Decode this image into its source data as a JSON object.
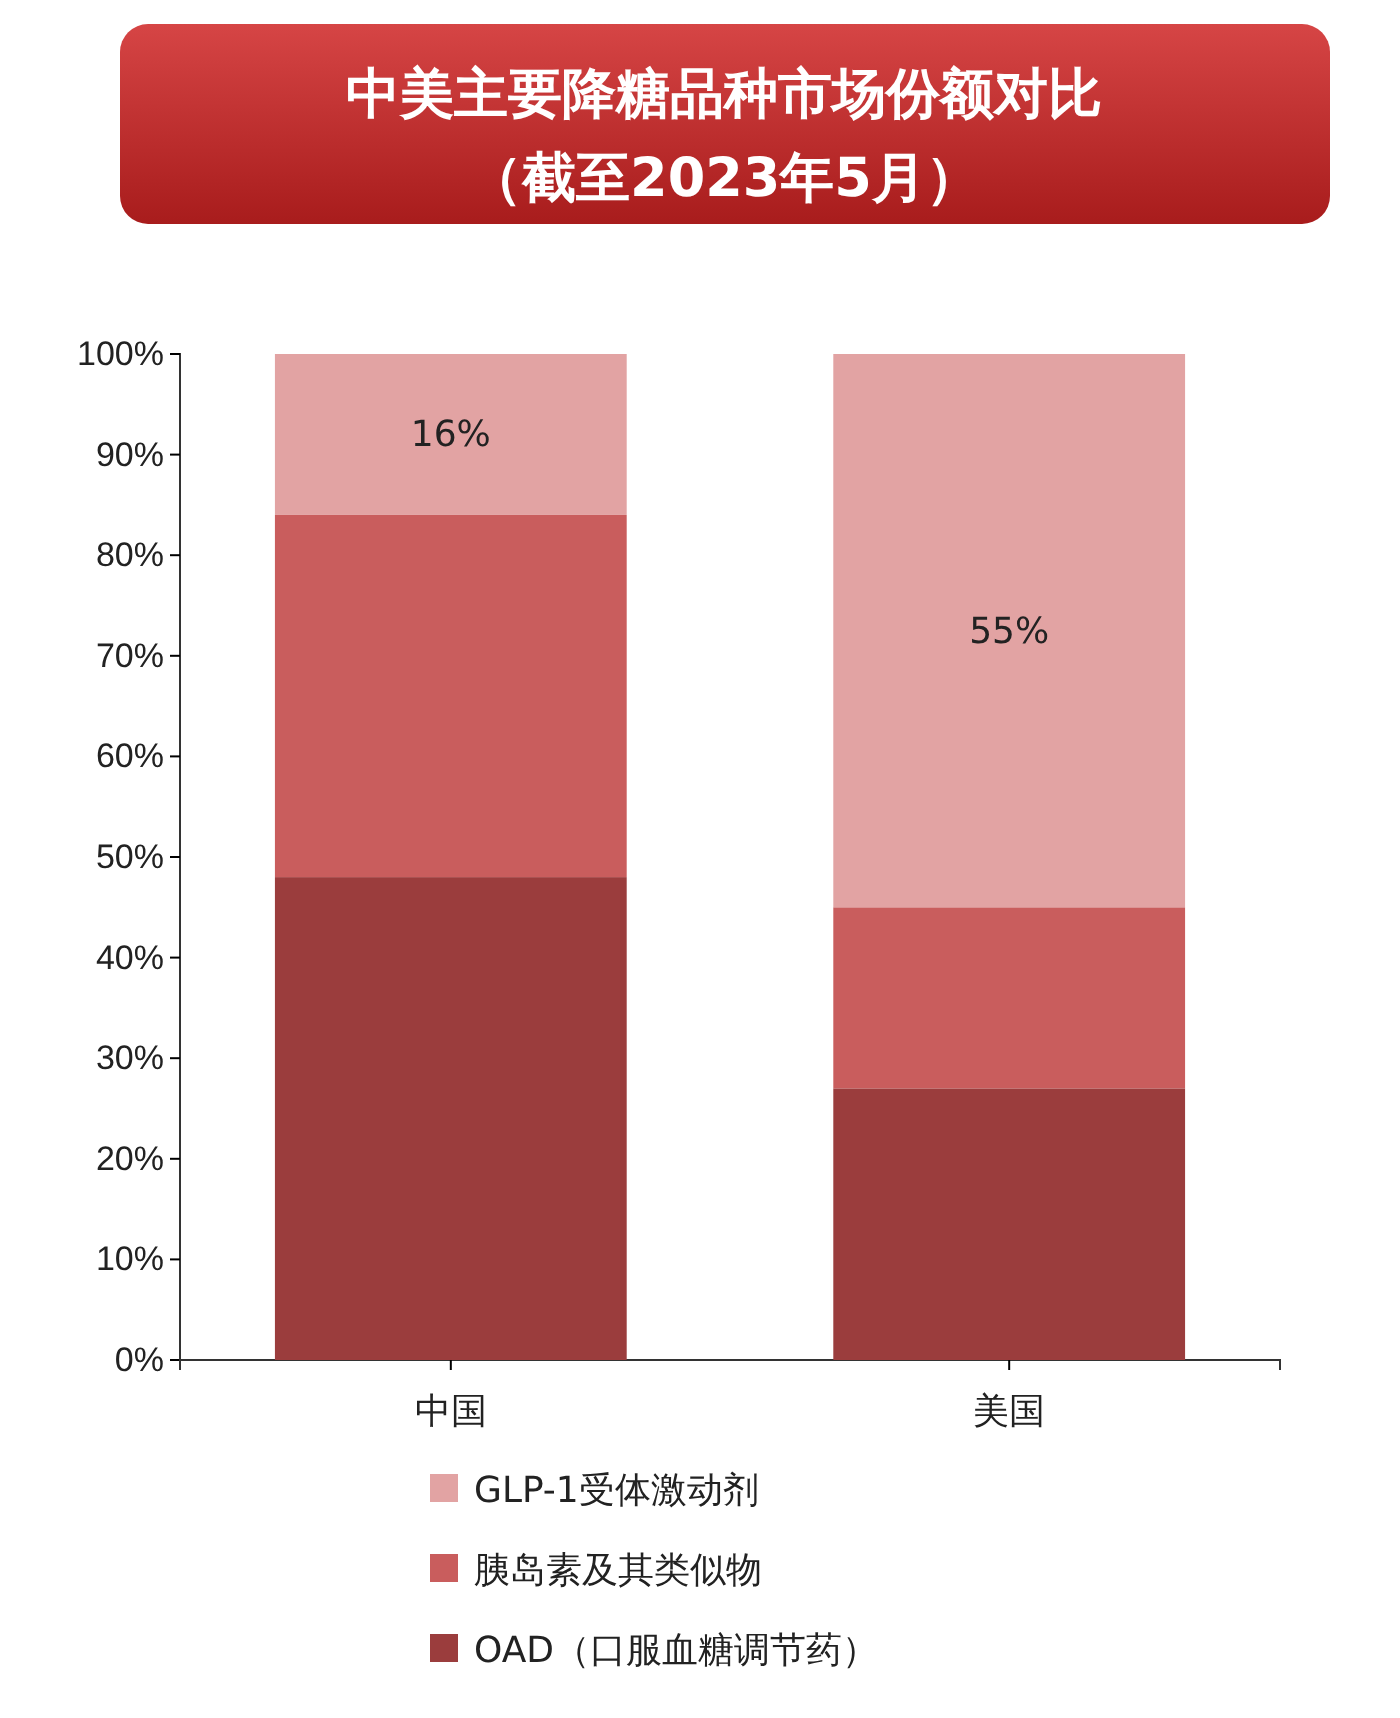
{
  "chart_data": {
    "type": "bar",
    "title": "中美主要降糖品种市场份额对比",
    "subtitle": "（截至2023年5月）",
    "categories": [
      "中国",
      "美国"
    ],
    "stacked": true,
    "series": [
      {
        "name": "OAD（口服血糖调节药）",
        "color": "#9b3d3d",
        "values": [
          48,
          27
        ]
      },
      {
        "name": "胰岛素及其类似物",
        "color": "#c95d5d",
        "values": [
          36,
          18
        ]
      },
      {
        "name": "GLP-1受体激动剂",
        "color": "#e2a3a3",
        "values": [
          16,
          55
        ],
        "value_labels": [
          "16%",
          "55%"
        ]
      }
    ],
    "ylim": [
      0,
      100
    ],
    "yticks": [
      {
        "value": 0,
        "label": "0%"
      },
      {
        "value": 10,
        "label": "10%"
      },
      {
        "value": 20,
        "label": "20%"
      },
      {
        "value": 30,
        "label": "30%"
      },
      {
        "value": 40,
        "label": "40%"
      },
      {
        "value": 50,
        "label": "50%"
      },
      {
        "value": 60,
        "label": "60%"
      },
      {
        "value": 70,
        "label": "70%"
      },
      {
        "value": 80,
        "label": "80%"
      },
      {
        "value": 90,
        "label": "90%"
      },
      {
        "value": 100,
        "label": "100%"
      }
    ],
    "grid": false,
    "legend": "bottom"
  }
}
